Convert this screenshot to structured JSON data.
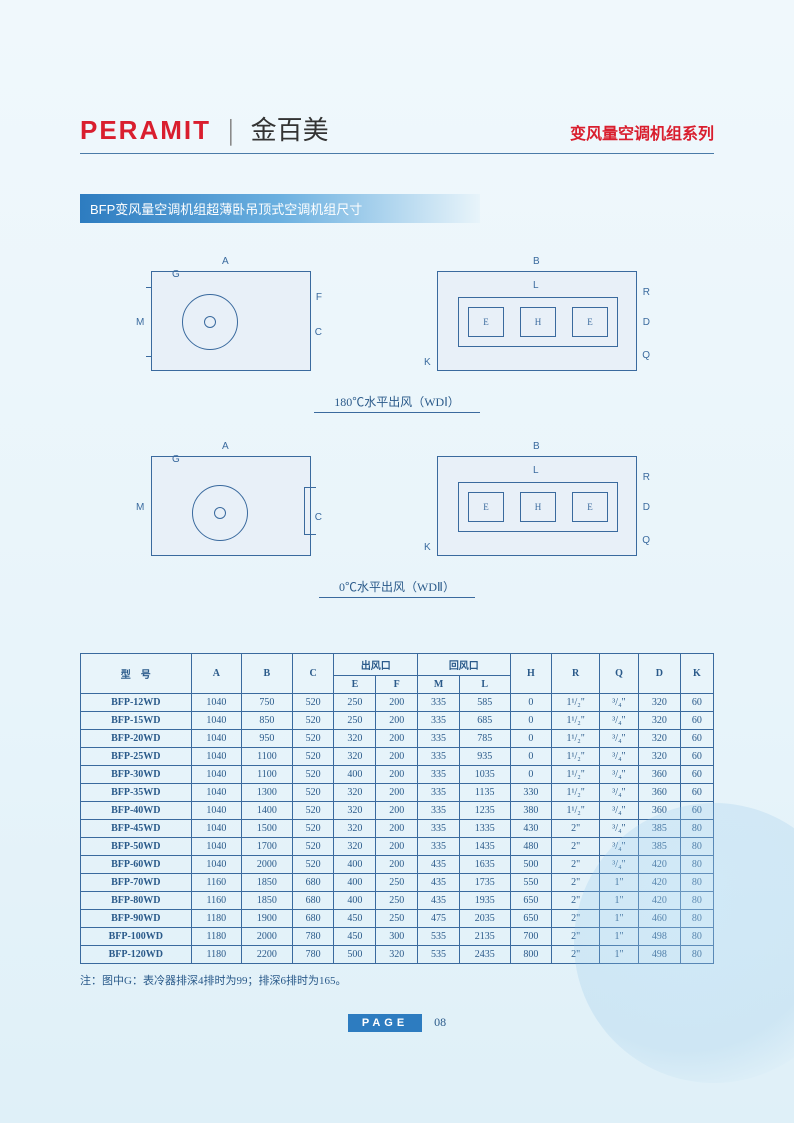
{
  "brand": {
    "en": "PERAMIT",
    "cn": "金百美"
  },
  "series_title": "变风量空调机组系列",
  "section_title": "BFP变风量空调机组超薄卧吊顶式空调机组尺寸",
  "diagram1_caption": "180℃水平出风（WDⅠ）",
  "diagram2_caption": "0℃水平出风（WDⅡ）",
  "dims": {
    "A": "A",
    "B": "B",
    "C": "C",
    "G": "G",
    "F": "F",
    "M": "M",
    "L": "L",
    "E": "E",
    "H": "H",
    "R": "R",
    "Q": "Q",
    "D": "D",
    "K": "K"
  },
  "table": {
    "group_headers": {
      "outlet": "出风口",
      "inlet": "回风口"
    },
    "columns": [
      "型　号",
      "A",
      "B",
      "C",
      "E",
      "F",
      "M",
      "L",
      "H",
      "R",
      "Q",
      "D",
      "K"
    ],
    "rows": [
      [
        "BFP-12WD",
        "1040",
        "750",
        "520",
        "250",
        "200",
        "335",
        "585",
        "0",
        "1¹/₂\"",
        "³/₄\"",
        "320",
        "60"
      ],
      [
        "BFP-15WD",
        "1040",
        "850",
        "520",
        "250",
        "200",
        "335",
        "685",
        "0",
        "1¹/₂\"",
        "³/₄\"",
        "320",
        "60"
      ],
      [
        "BFP-20WD",
        "1040",
        "950",
        "520",
        "320",
        "200",
        "335",
        "785",
        "0",
        "1¹/₂\"",
        "³/₄\"",
        "320",
        "60"
      ],
      [
        "BFP-25WD",
        "1040",
        "1100",
        "520",
        "320",
        "200",
        "335",
        "935",
        "0",
        "1¹/₂\"",
        "³/₄\"",
        "320",
        "60"
      ],
      [
        "BFP-30WD",
        "1040",
        "1100",
        "520",
        "400",
        "200",
        "335",
        "1035",
        "0",
        "1¹/₂\"",
        "³/₄\"",
        "360",
        "60"
      ],
      [
        "BFP-35WD",
        "1040",
        "1300",
        "520",
        "320",
        "200",
        "335",
        "1135",
        "330",
        "1¹/₂\"",
        "³/₄\"",
        "360",
        "60"
      ],
      [
        "BFP-40WD",
        "1040",
        "1400",
        "520",
        "320",
        "200",
        "335",
        "1235",
        "380",
        "1¹/₂\"",
        "³/₄\"",
        "360",
        "60"
      ],
      [
        "BFP-45WD",
        "1040",
        "1500",
        "520",
        "320",
        "200",
        "335",
        "1335",
        "430",
        "2\"",
        "³/₄\"",
        "385",
        "80"
      ],
      [
        "BFP-50WD",
        "1040",
        "1700",
        "520",
        "320",
        "200",
        "335",
        "1435",
        "480",
        "2\"",
        "³/₄\"",
        "385",
        "80"
      ],
      [
        "BFP-60WD",
        "1040",
        "2000",
        "520",
        "400",
        "200",
        "435",
        "1635",
        "500",
        "2\"",
        "³/₄\"",
        "420",
        "80"
      ],
      [
        "BFP-70WD",
        "1160",
        "1850",
        "680",
        "400",
        "250",
        "435",
        "1735",
        "550",
        "2\"",
        "1\"",
        "420",
        "80"
      ],
      [
        "BFP-80WD",
        "1160",
        "1850",
        "680",
        "400",
        "250",
        "435",
        "1935",
        "650",
        "2\"",
        "1\"",
        "420",
        "80"
      ],
      [
        "BFP-90WD",
        "1180",
        "1900",
        "680",
        "450",
        "250",
        "475",
        "2035",
        "650",
        "2\"",
        "1\"",
        "460",
        "80"
      ],
      [
        "BFP-100WD",
        "1180",
        "2000",
        "780",
        "450",
        "300",
        "535",
        "2135",
        "700",
        "2\"",
        "1\"",
        "498",
        "80"
      ],
      [
        "BFP-120WD",
        "1180",
        "2200",
        "780",
        "500",
        "320",
        "535",
        "2435",
        "800",
        "2\"",
        "1\"",
        "498",
        "80"
      ]
    ]
  },
  "note": "注：图中G：表冷器排深4排时为99；排深6排时为165。",
  "page_label": "PAGE",
  "page_number": "08",
  "colors": {
    "brand_red": "#d91e2e",
    "line_blue": "#3a6a9e",
    "banner_blue": "#2d7cc0"
  }
}
